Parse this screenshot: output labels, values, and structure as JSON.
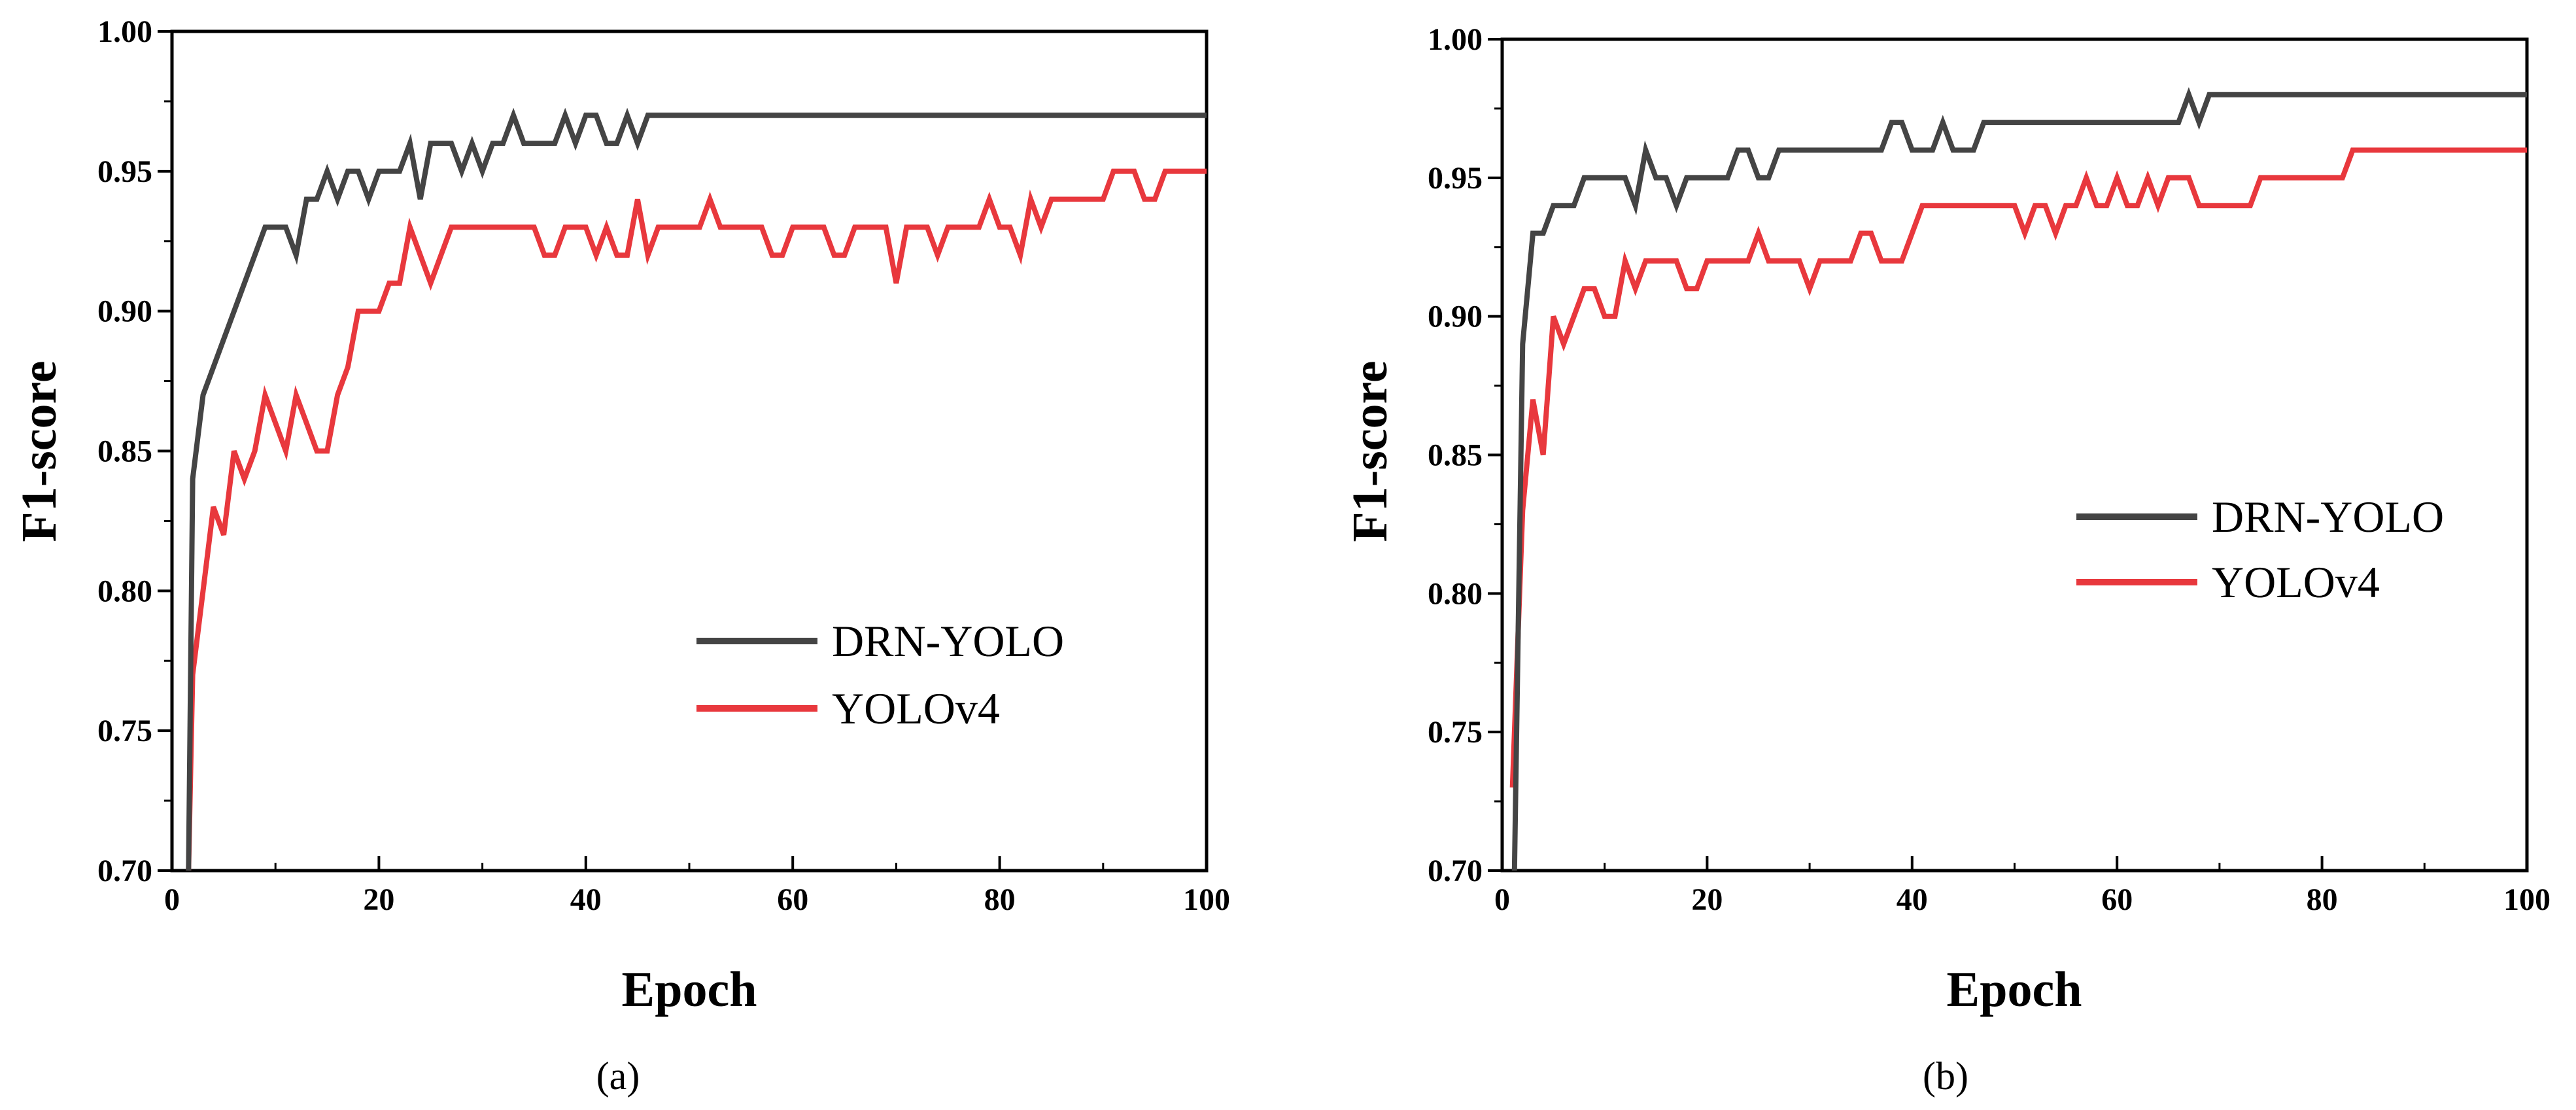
{
  "chart_data": [
    {
      "type": "line",
      "panel_label": "(a)",
      "xlabel": "Epoch",
      "ylabel": "F1-score",
      "xlim": [
        0,
        100
      ],
      "ylim": [
        0.7,
        1.0
      ],
      "x_ticks": [
        0,
        20,
        40,
        60,
        80,
        100
      ],
      "x_tick_labels": [
        "0",
        "20",
        "40",
        "60",
        "80",
        "100"
      ],
      "y_ticks": [
        0.7,
        0.75,
        0.8,
        0.85,
        0.9,
        0.95,
        1.0
      ],
      "y_tick_labels": [
        "0.70",
        "0.75",
        "0.80",
        "0.85",
        "0.90",
        "0.95",
        "1.00"
      ],
      "legend": {
        "position": "lower-right"
      },
      "series": [
        {
          "name": "DRN-YOLO",
          "color": "#444444",
          "x": [
            1.6,
            2,
            3,
            9,
            11,
            12,
            13,
            14,
            15,
            16,
            17,
            18,
            19,
            20,
            21,
            22,
            23,
            24,
            25,
            26,
            27,
            28,
            29,
            30,
            31,
            32,
            33,
            34,
            35,
            36,
            37,
            38,
            39,
            40,
            41,
            42,
            43,
            44,
            45,
            46,
            100
          ],
          "y": [
            0.7,
            0.84,
            0.87,
            0.93,
            0.93,
            0.92,
            0.94,
            0.94,
            0.95,
            0.94,
            0.95,
            0.95,
            0.94,
            0.95,
            0.95,
            0.95,
            0.96,
            0.94,
            0.96,
            0.96,
            0.96,
            0.95,
            0.96,
            0.95,
            0.96,
            0.96,
            0.97,
            0.96,
            0.96,
            0.96,
            0.96,
            0.97,
            0.96,
            0.97,
            0.97,
            0.96,
            0.96,
            0.97,
            0.96,
            0.97,
            0.97
          ]
        },
        {
          "name": "YOLOv4",
          "color": "#e8383d",
          "x": [
            1.6,
            2,
            3,
            4,
            5,
            6,
            7,
            8,
            9,
            10,
            11,
            12,
            13,
            14,
            15,
            16,
            17,
            18,
            19,
            20,
            21,
            22,
            23,
            24,
            25,
            26,
            27,
            28,
            29,
            30,
            31,
            32,
            33,
            34,
            35,
            36,
            37,
            38,
            39,
            40,
            41,
            42,
            43,
            44,
            45,
            46,
            47,
            48,
            49,
            50,
            51,
            52,
            53,
            54,
            55,
            56,
            57,
            58,
            59,
            60,
            61,
            62,
            63,
            64,
            65,
            66,
            67,
            68,
            69,
            70,
            71,
            72,
            73,
            74,
            75,
            76,
            77,
            78,
            79,
            80,
            81,
            82,
            83,
            84,
            85,
            86,
            87,
            88,
            89,
            90,
            91,
            92,
            93,
            94,
            95,
            96,
            97,
            98,
            99,
            100
          ],
          "y": [
            0.7,
            0.77,
            0.8,
            0.83,
            0.82,
            0.85,
            0.84,
            0.85,
            0.87,
            0.86,
            0.85,
            0.87,
            0.86,
            0.85,
            0.85,
            0.87,
            0.88,
            0.9,
            0.9,
            0.9,
            0.91,
            0.91,
            0.93,
            0.92,
            0.91,
            0.92,
            0.93,
            0.93,
            0.93,
            0.93,
            0.93,
            0.93,
            0.93,
            0.93,
            0.93,
            0.92,
            0.92,
            0.93,
            0.93,
            0.93,
            0.92,
            0.93,
            0.92,
            0.92,
            0.94,
            0.92,
            0.93,
            0.93,
            0.93,
            0.93,
            0.93,
            0.94,
            0.93,
            0.93,
            0.93,
            0.93,
            0.93,
            0.92,
            0.92,
            0.93,
            0.93,
            0.93,
            0.93,
            0.92,
            0.92,
            0.93,
            0.93,
            0.93,
            0.93,
            0.91,
            0.93,
            0.93,
            0.93,
            0.92,
            0.93,
            0.93,
            0.93,
            0.93,
            0.94,
            0.93,
            0.93,
            0.92,
            0.94,
            0.93,
            0.94,
            0.94,
            0.94,
            0.94,
            0.94,
            0.94,
            0.95,
            0.95,
            0.95,
            0.94,
            0.94,
            0.95,
            0.95,
            0.95,
            0.95,
            0.95
          ]
        }
      ]
    },
    {
      "type": "line",
      "panel_label": "(b)",
      "xlabel": "Epoch",
      "ylabel": "F1-score",
      "xlim": [
        0,
        100
      ],
      "ylim": [
        0.7,
        1.0
      ],
      "x_ticks": [
        0,
        20,
        40,
        60,
        80,
        100
      ],
      "x_tick_labels": [
        "0",
        "20",
        "40",
        "60",
        "80",
        "100"
      ],
      "y_ticks": [
        0.7,
        0.75,
        0.8,
        0.85,
        0.9,
        0.95,
        1.0
      ],
      "y_tick_labels": [
        "0.70",
        "0.75",
        "0.80",
        "0.85",
        "0.90",
        "0.95",
        "1.00"
      ],
      "legend": {
        "position": "center-right"
      },
      "series": [
        {
          "name": "DRN-YOLO",
          "color": "#444444",
          "x": [
            1.2,
            2,
            3,
            4,
            5,
            6,
            7,
            8,
            9,
            10,
            11,
            12,
            13,
            14,
            15,
            16,
            17,
            18,
            19,
            20,
            21,
            22,
            23,
            24,
            25,
            26,
            27,
            28,
            29,
            30,
            31,
            32,
            33,
            34,
            35,
            36,
            37,
            38,
            39,
            40,
            41,
            42,
            43,
            44,
            45,
            46,
            47,
            48,
            66,
            67,
            68,
            69,
            100
          ],
          "y": [
            0.7,
            0.89,
            0.93,
            0.93,
            0.94,
            0.94,
            0.94,
            0.95,
            0.95,
            0.95,
            0.95,
            0.95,
            0.94,
            0.96,
            0.95,
            0.95,
            0.94,
            0.95,
            0.95,
            0.95,
            0.95,
            0.95,
            0.96,
            0.96,
            0.95,
            0.95,
            0.96,
            0.96,
            0.96,
            0.96,
            0.96,
            0.96,
            0.96,
            0.96,
            0.96,
            0.96,
            0.96,
            0.97,
            0.97,
            0.96,
            0.96,
            0.96,
            0.97,
            0.96,
            0.96,
            0.96,
            0.97,
            0.97,
            0.97,
            0.98,
            0.97,
            0.98,
            0.98
          ]
        },
        {
          "name": "YOLOv4",
          "color": "#e8383d",
          "x": [
            1,
            2,
            3,
            4,
            5,
            6,
            7,
            8,
            9,
            10,
            11,
            12,
            13,
            14,
            15,
            16,
            17,
            18,
            19,
            20,
            21,
            22,
            23,
            24,
            25,
            26,
            27,
            28,
            29,
            30,
            31,
            32,
            33,
            34,
            35,
            36,
            37,
            38,
            39,
            40,
            41,
            42,
            43,
            44,
            45,
            46,
            47,
            48,
            49,
            50,
            51,
            52,
            53,
            54,
            55,
            56,
            57,
            58,
            59,
            60,
            61,
            62,
            63,
            64,
            65,
            66,
            67,
            68,
            69,
            70,
            71,
            72,
            73,
            74,
            75,
            76,
            77,
            78,
            79,
            80,
            81,
            82,
            83,
            100
          ],
          "y": [
            0.73,
            0.83,
            0.87,
            0.85,
            0.9,
            0.89,
            0.9,
            0.91,
            0.91,
            0.9,
            0.9,
            0.92,
            0.91,
            0.92,
            0.92,
            0.92,
            0.92,
            0.91,
            0.91,
            0.92,
            0.92,
            0.92,
            0.92,
            0.92,
            0.93,
            0.92,
            0.92,
            0.92,
            0.92,
            0.91,
            0.92,
            0.92,
            0.92,
            0.92,
            0.93,
            0.93,
            0.92,
            0.92,
            0.92,
            0.93,
            0.94,
            0.94,
            0.94,
            0.94,
            0.94,
            0.94,
            0.94,
            0.94,
            0.94,
            0.94,
            0.93,
            0.94,
            0.94,
            0.93,
            0.94,
            0.94,
            0.95,
            0.94,
            0.94,
            0.95,
            0.94,
            0.94,
            0.95,
            0.94,
            0.95,
            0.95,
            0.95,
            0.94,
            0.94,
            0.94,
            0.94,
            0.94,
            0.94,
            0.95,
            0.95,
            0.95,
            0.95,
            0.95,
            0.95,
            0.95,
            0.95,
            0.95,
            0.96,
            0.96
          ]
        }
      ]
    }
  ]
}
